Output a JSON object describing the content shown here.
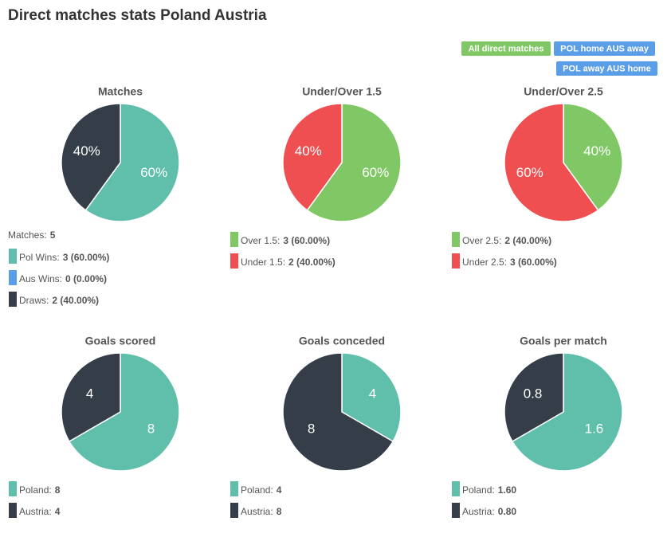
{
  "title": "Direct matches stats Poland Austria",
  "buttons": [
    "All direct matches",
    "POL home AUS away",
    "POL away AUS home"
  ],
  "chart_data": [
    {
      "type": "pie",
      "title": "Matches",
      "summary": {
        "label": "Matches:",
        "value": 5
      },
      "categories": [
        "Pol Wins:",
        "Aus Wins:",
        "Draws:"
      ],
      "values": [
        3,
        0,
        2
      ],
      "value_labels": [
        "3 (60.00%)",
        "0 (0.00%)",
        "2 (40.00%)"
      ],
      "slice_labels": [
        "60%",
        null,
        "40%"
      ],
      "colors": [
        "#5fbfaa",
        "#5b9ee8",
        "#343d48"
      ]
    },
    {
      "type": "pie",
      "title": "Under/Over 1.5",
      "categories": [
        "Over 1.5:",
        "Under 1.5:"
      ],
      "values": [
        3,
        2
      ],
      "value_labels": [
        "3 (60.00%)",
        "2 (40.00%)"
      ],
      "slice_labels": [
        "60%",
        "40%"
      ],
      "colors": [
        "#80c866",
        "#ef4f50"
      ]
    },
    {
      "type": "pie",
      "title": "Under/Over 2.5",
      "categories": [
        "Over 2.5:",
        "Under 2.5:"
      ],
      "values": [
        2,
        3
      ],
      "value_labels": [
        "2 (40.00%)",
        "3 (60.00%)"
      ],
      "slice_labels": [
        "40%",
        "60%"
      ],
      "colors": [
        "#80c866",
        "#ef4f50"
      ]
    },
    {
      "type": "pie",
      "title": "Goals scored",
      "categories": [
        "Poland:",
        "Austria:"
      ],
      "values": [
        8,
        4
      ],
      "colors": [
        "#5fbfaa",
        "#343d48"
      ]
    },
    {
      "type": "pie",
      "title": "Goals conceded",
      "categories": [
        "Poland:",
        "Austria:"
      ],
      "values": [
        4,
        8
      ],
      "colors": [
        "#5fbfaa",
        "#343d48"
      ]
    },
    {
      "type": "pie",
      "title": "Goals per match",
      "categories": [
        "Poland:",
        "Austria:"
      ],
      "values": [
        1.6,
        0.8
      ],
      "value_labels": [
        "1.60",
        "0.80"
      ],
      "colors": [
        "#5fbfaa",
        "#343d48"
      ]
    }
  ]
}
